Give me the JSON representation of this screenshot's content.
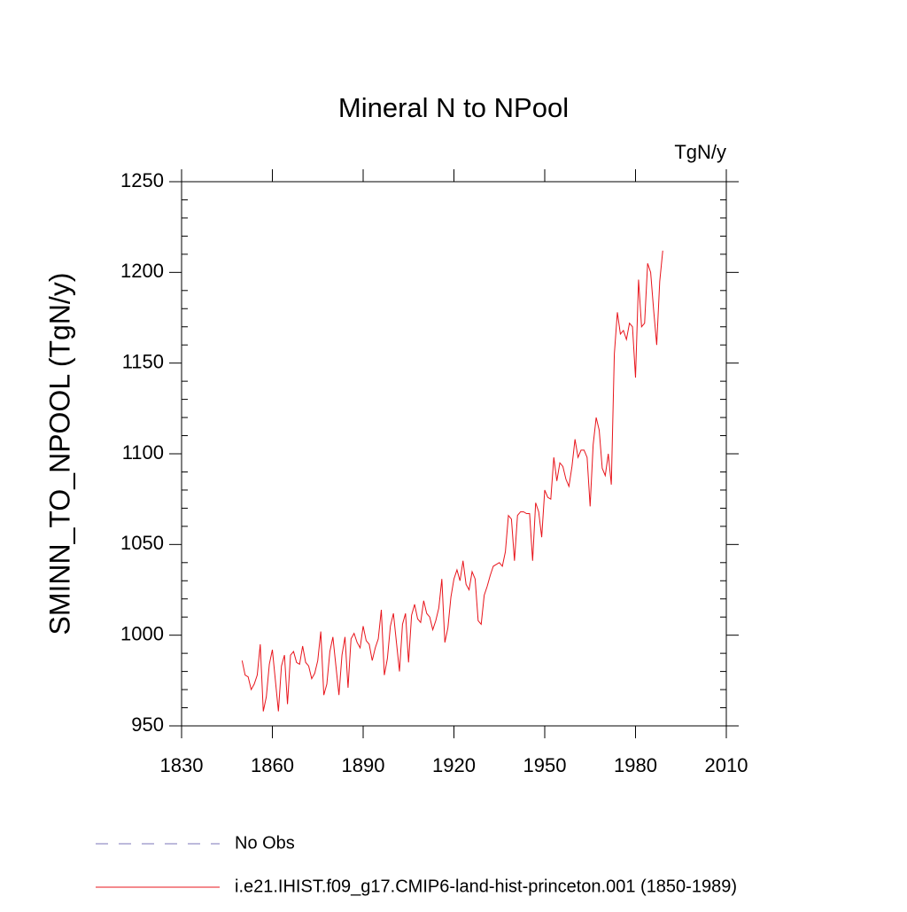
{
  "chart_data": {
    "type": "line",
    "title": "Mineral N to NPool",
    "units": "TgN/y",
    "y_label": "SMINN_TO_NPOOL  (TgN/y)",
    "xlim": [
      1830,
      2010
    ],
    "xticks": [
      1830,
      1860,
      1890,
      1920,
      1950,
      1980,
      2010
    ],
    "ylim": [
      950,
      1250
    ],
    "yticks": [
      950,
      1000,
      1050,
      1100,
      1150,
      1200,
      1250
    ],
    "yminorticks": [
      960,
      970,
      980,
      990,
      1010,
      1020,
      1030,
      1040,
      1060,
      1070,
      1080,
      1090,
      1110,
      1120,
      1130,
      1140,
      1160,
      1170,
      1180,
      1190,
      1210,
      1220,
      1230,
      1240
    ],
    "x": [
      1850,
      1851,
      1852,
      1853,
      1854,
      1855,
      1856,
      1857,
      1858,
      1859,
      1860,
      1861,
      1862,
      1863,
      1864,
      1865,
      1866,
      1867,
      1868,
      1869,
      1870,
      1871,
      1872,
      1873,
      1874,
      1875,
      1876,
      1877,
      1878,
      1879,
      1880,
      1881,
      1882,
      1883,
      1884,
      1885,
      1886,
      1887,
      1888,
      1889,
      1890,
      1891,
      1892,
      1893,
      1894,
      1895,
      1896,
      1897,
      1898,
      1899,
      1900,
      1901,
      1902,
      1903,
      1904,
      1905,
      1906,
      1907,
      1908,
      1909,
      1910,
      1911,
      1912,
      1913,
      1914,
      1915,
      1916,
      1917,
      1918,
      1919,
      1920,
      1921,
      1922,
      1923,
      1924,
      1925,
      1926,
      1927,
      1928,
      1929,
      1930,
      1931,
      1932,
      1933,
      1934,
      1935,
      1936,
      1937,
      1938,
      1939,
      1940,
      1941,
      1942,
      1943,
      1944,
      1945,
      1946,
      1947,
      1948,
      1949,
      1950,
      1951,
      1952,
      1953,
      1954,
      1955,
      1956,
      1957,
      1958,
      1959,
      1960,
      1961,
      1962,
      1963,
      1964,
      1965,
      1966,
      1967,
      1968,
      1969,
      1970,
      1971,
      1972,
      1973,
      1974,
      1975,
      1976,
      1977,
      1978,
      1979,
      1980,
      1981,
      1982,
      1983,
      1984,
      1985,
      1986,
      1987,
      1988,
      1989
    ],
    "series": [
      {
        "name": "No Obs",
        "color": "#7b74b8",
        "line_style": "dashed",
        "values": [
          null,
          null,
          null,
          null,
          null,
          null,
          null,
          null,
          null,
          null,
          null,
          null,
          null,
          null,
          null,
          null,
          null,
          null,
          null,
          null,
          null,
          null,
          null,
          null,
          null,
          null,
          null,
          null,
          null,
          null,
          null,
          null,
          null,
          null,
          null,
          null,
          null,
          null,
          null,
          null,
          null,
          null,
          null,
          null,
          null,
          null,
          null,
          null,
          null,
          null,
          null,
          null,
          null,
          null,
          null,
          null,
          null,
          null,
          null,
          null,
          null,
          null,
          null,
          null,
          null,
          null,
          null,
          null,
          null,
          null,
          null,
          null,
          null,
          null,
          null,
          null,
          null,
          null,
          null,
          null,
          null,
          null,
          null,
          null,
          null,
          null,
          null,
          null,
          null,
          null,
          null,
          null,
          null,
          null,
          null,
          null,
          null,
          null,
          null,
          null,
          null,
          null,
          null,
          null,
          null,
          null,
          null,
          null,
          null,
          null,
          null,
          null,
          null,
          null,
          null,
          null,
          null,
          null,
          null,
          null,
          null,
          null,
          null,
          null,
          null,
          null,
          null,
          null,
          null,
          null,
          null,
          null,
          null,
          null,
          null,
          null,
          null,
          null,
          null,
          null
        ]
      },
      {
        "name": "i.e21.IHIST.f09_g17.CMIP6-land-hist-princeton.001 (1850-1989)",
        "color": "#e8141b",
        "line_style": "solid",
        "values": [
          986,
          978,
          977,
          970,
          973,
          978,
          995,
          958,
          966,
          984,
          992,
          975,
          958,
          983,
          989,
          962,
          989,
          991,
          985,
          984,
          994,
          985,
          983,
          976,
          979,
          986,
          1002,
          967,
          973,
          991,
          999,
          983,
          967,
          989,
          999,
          971,
          998,
          1001,
          996,
          993,
          1005,
          997,
          995,
          986,
          993,
          998,
          1014,
          978,
          987,
          1005,
          1012,
          996,
          980,
          1006,
          1012,
          985,
          1011,
          1017,
          1009,
          1007,
          1019,
          1012,
          1010,
          1003,
          1008,
          1015,
          1031,
          996,
          1004,
          1021,
          1031,
          1036,
          1030,
          1041,
          1028,
          1025,
          1035,
          1031,
          1008,
          1006,
          1022,
          1027,
          1033,
          1038,
          1039,
          1040,
          1038,
          1046,
          1066,
          1064,
          1041,
          1066,
          1068,
          1068,
          1067,
          1067,
          1041,
          1073,
          1068,
          1054,
          1080,
          1076,
          1075,
          1098,
          1085,
          1095,
          1093,
          1086,
          1082,
          1093,
          1108,
          1098,
          1102,
          1102,
          1098,
          1071,
          1105,
          1120,
          1113,
          1092,
          1088,
          1100,
          1083,
          1155,
          1178,
          1166,
          1168,
          1163,
          1172,
          1170,
          1142,
          1196,
          1170,
          1172,
          1205,
          1200,
          1179,
          1160,
          1195,
          1212
        ]
      }
    ]
  }
}
